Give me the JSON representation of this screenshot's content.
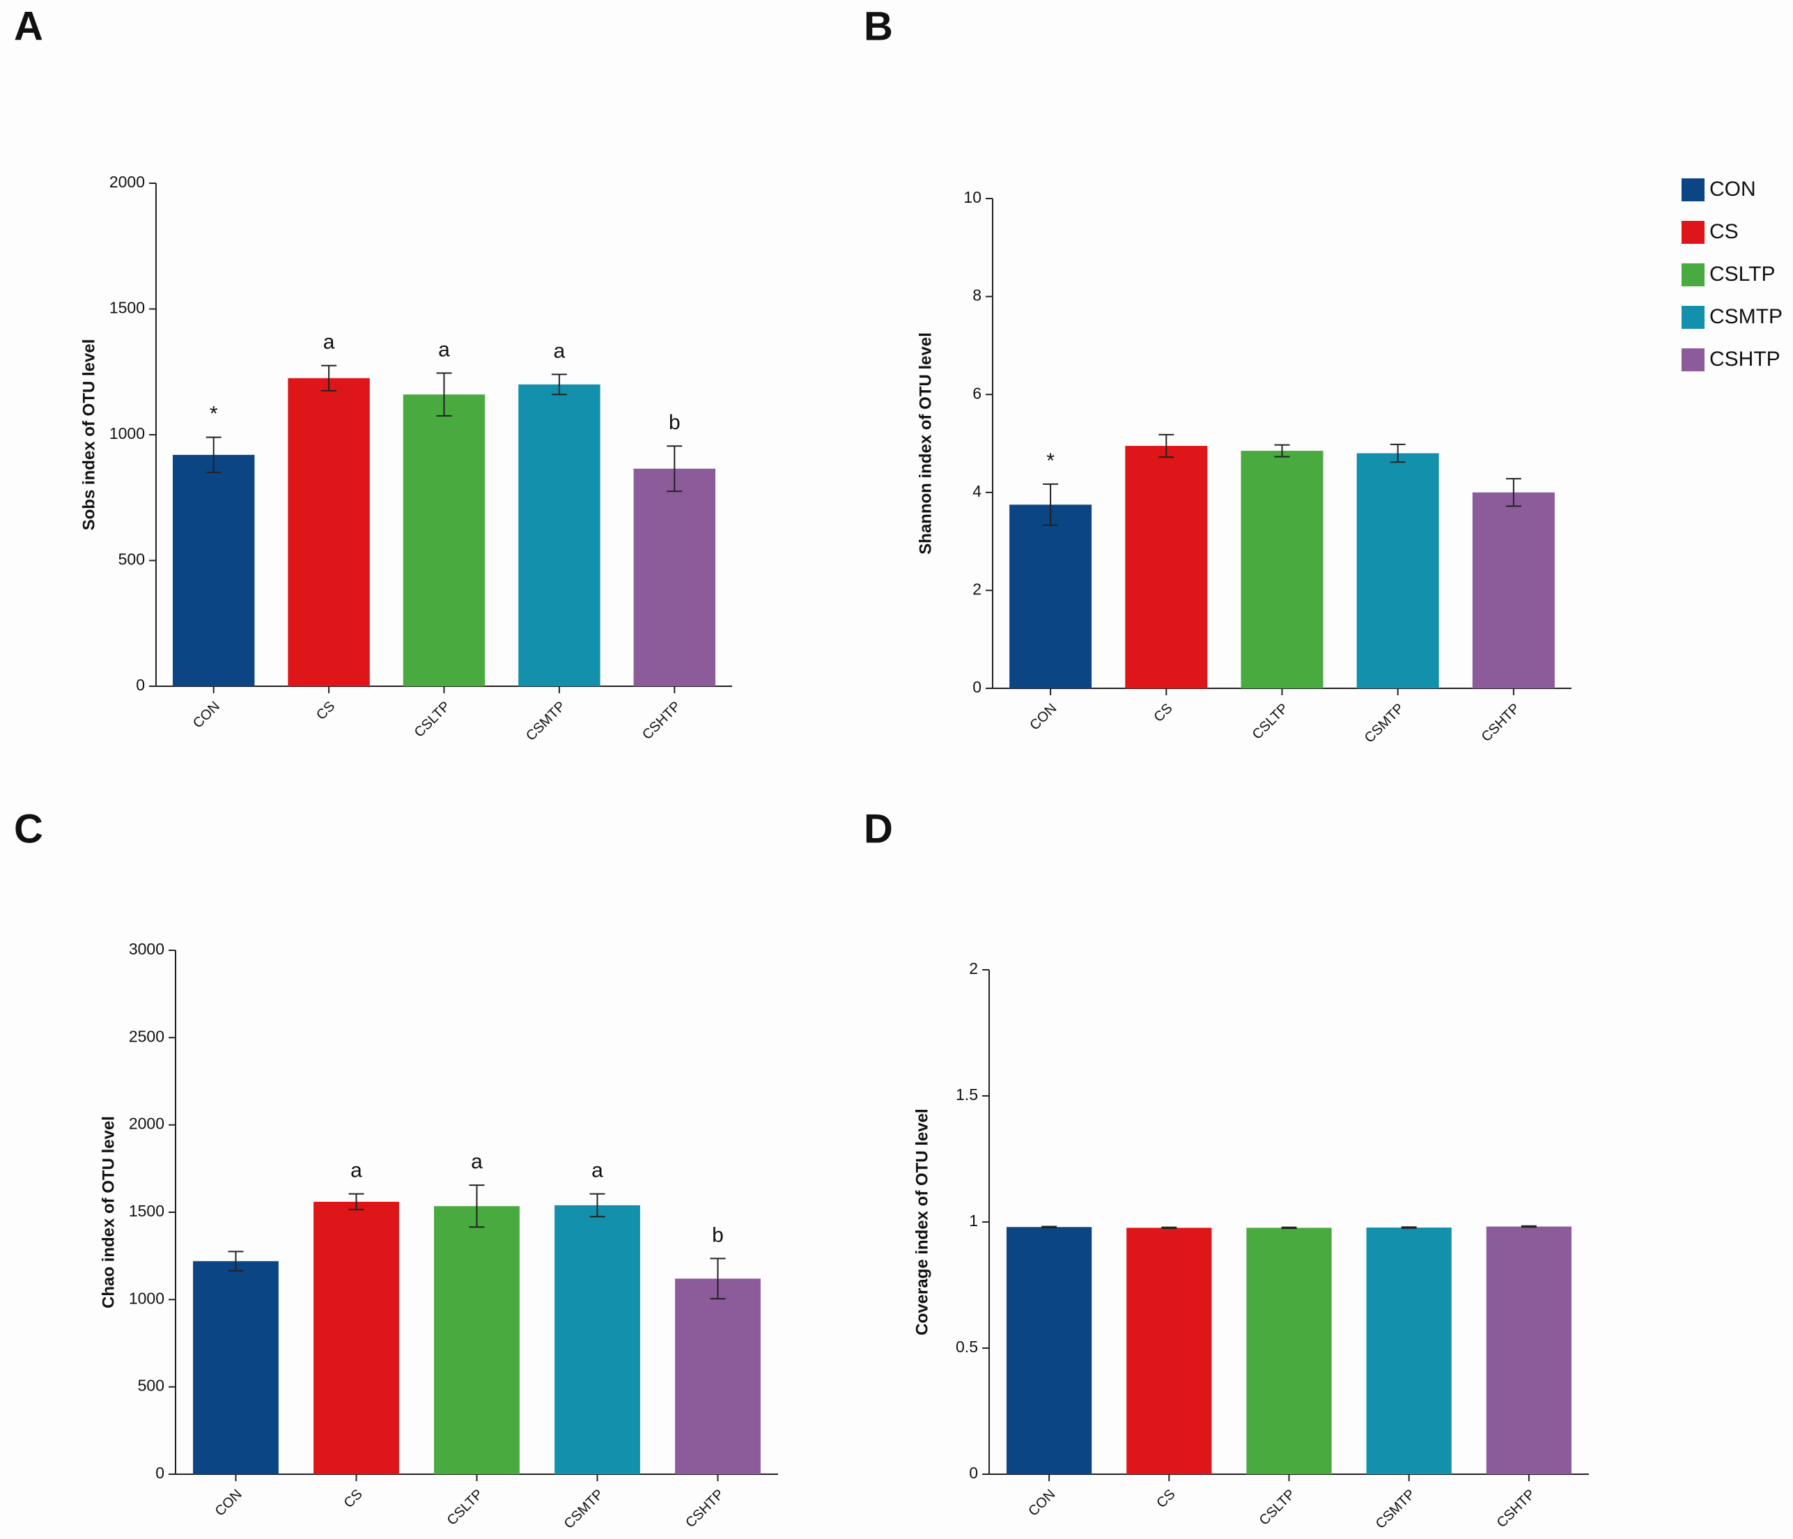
{
  "chart_data": [
    {
      "type": "bar",
      "panel": "A",
      "ylabel": "Sobs index of OTU level",
      "categories": [
        "CON",
        "CS",
        "CSLTP",
        "CSMTP",
        "CSHTP"
      ],
      "values": [
        920,
        1225,
        1160,
        1200,
        865
      ],
      "errors": [
        70,
        50,
        85,
        40,
        90
      ],
      "annotations": [
        "*",
        "a",
        "a",
        "a",
        "b"
      ],
      "colors": [
        "#0b4584",
        "#de1519",
        "#49aa40",
        "#1390ab",
        "#8c5c9a"
      ],
      "ylim": [
        0,
        2000
      ],
      "yticks": [
        0,
        500,
        1000,
        1500,
        2000
      ]
    },
    {
      "type": "bar",
      "panel": "B",
      "ylabel": "Shannon index of OTU level",
      "categories": [
        "CON",
        "CS",
        "CSLTP",
        "CSMTP",
        "CSHTP"
      ],
      "values": [
        3.75,
        4.95,
        4.85,
        4.8,
        4.0
      ],
      "errors": [
        0.42,
        0.23,
        0.12,
        0.18,
        0.28
      ],
      "annotations": [
        "*",
        null,
        null,
        null,
        null
      ],
      "colors": [
        "#0b4584",
        "#de1519",
        "#49aa40",
        "#1390ab",
        "#8c5c9a"
      ],
      "ylim": [
        0,
        10
      ],
      "yticks": [
        0,
        2,
        4,
        6,
        8,
        10
      ],
      "legend": "right"
    },
    {
      "type": "bar",
      "panel": "C",
      "ylabel": "Chao index of OTU level",
      "categories": [
        "CON",
        "CS",
        "CSLTP",
        "CSMTP",
        "CSHTP"
      ],
      "values": [
        1220,
        1560,
        1535,
        1540,
        1120
      ],
      "errors": [
        55,
        45,
        120,
        65,
        115
      ],
      "annotations": [
        null,
        "a",
        "a",
        "a",
        "b"
      ],
      "colors": [
        "#0b4584",
        "#de1519",
        "#49aa40",
        "#1390ab",
        "#8c5c9a"
      ],
      "ylim": [
        0,
        3000
      ],
      "yticks": [
        0,
        500,
        1000,
        1500,
        2000,
        2500,
        3000
      ]
    },
    {
      "type": "bar",
      "panel": "D",
      "ylabel": "Coverage index of OTU level",
      "categories": [
        "CON",
        "CS",
        "CSLTP",
        "CSMTP",
        "CSHTP"
      ],
      "values": [
        0.98,
        0.977,
        0.977,
        0.978,
        0.982
      ],
      "errors": [
        0.002,
        0.002,
        0.002,
        0.002,
        0.002
      ],
      "annotations": [
        null,
        null,
        null,
        null,
        null
      ],
      "colors": [
        "#0b4584",
        "#de1519",
        "#49aa40",
        "#1390ab",
        "#8c5c9a"
      ],
      "ylim": [
        0,
        2
      ],
      "yticks": [
        0,
        0.5,
        1,
        1.5,
        2
      ]
    }
  ]
}
